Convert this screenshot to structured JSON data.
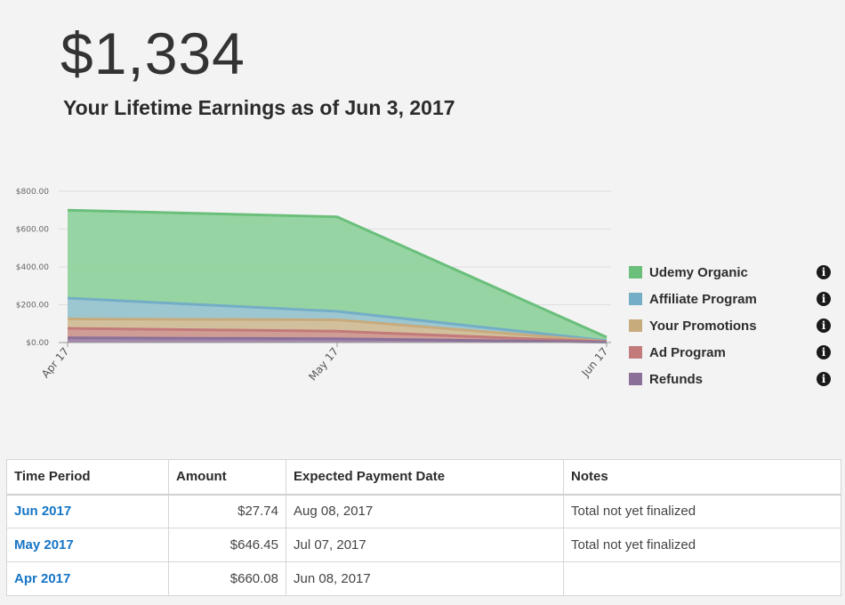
{
  "header": {
    "total": "$1,334",
    "subtitle": "Your Lifetime Earnings as of Jun 3, 2017"
  },
  "chart_data": {
    "type": "area",
    "stacked": false,
    "categories": [
      "Apr 17",
      "May 17",
      "Jun 17"
    ],
    "ylim": [
      0,
      800
    ],
    "yticks": [
      "$0.00",
      "$200.00",
      "$400.00",
      "$600.00",
      "$800.00"
    ],
    "ytick_values": [
      0,
      200,
      400,
      600,
      800
    ],
    "grid": true,
    "legend_position": "right",
    "series": [
      {
        "name": "Udemy Organic",
        "color": "#6abf7b",
        "fill": "#8fd19c",
        "values": [
          700,
          665,
          28
        ]
      },
      {
        "name": "Affiliate Program",
        "color": "#73adc6",
        "fill": "#9cc6d5",
        "values": [
          235,
          165,
          10
        ]
      },
      {
        "name": "Your Promotions",
        "color": "#c8ab7d",
        "fill": "#d7bf98",
        "values": [
          125,
          120,
          6
        ]
      },
      {
        "name": "Ad Program",
        "color": "#c27a7a",
        "fill": "#cf9a95",
        "values": [
          75,
          60,
          4
        ]
      },
      {
        "name": "Refunds",
        "color": "#8a6f99",
        "fill": "#9e87ad",
        "values": [
          25,
          20,
          2
        ]
      }
    ]
  },
  "table": {
    "headers": [
      "Time Period",
      "Amount",
      "Expected Payment Date",
      "Notes"
    ],
    "rows": [
      {
        "period": "Jun 2017",
        "amount": "$27.74",
        "date": "Aug 08, 2017",
        "notes": "Total not yet finalized"
      },
      {
        "period": "May 2017",
        "amount": "$646.45",
        "date": "Jul 07, 2017",
        "notes": "Total not yet finalized"
      },
      {
        "period": "Apr 2017",
        "amount": "$660.08",
        "date": "Jun 08, 2017",
        "notes": ""
      }
    ]
  },
  "icons": {
    "info": "info-circle-icon"
  }
}
